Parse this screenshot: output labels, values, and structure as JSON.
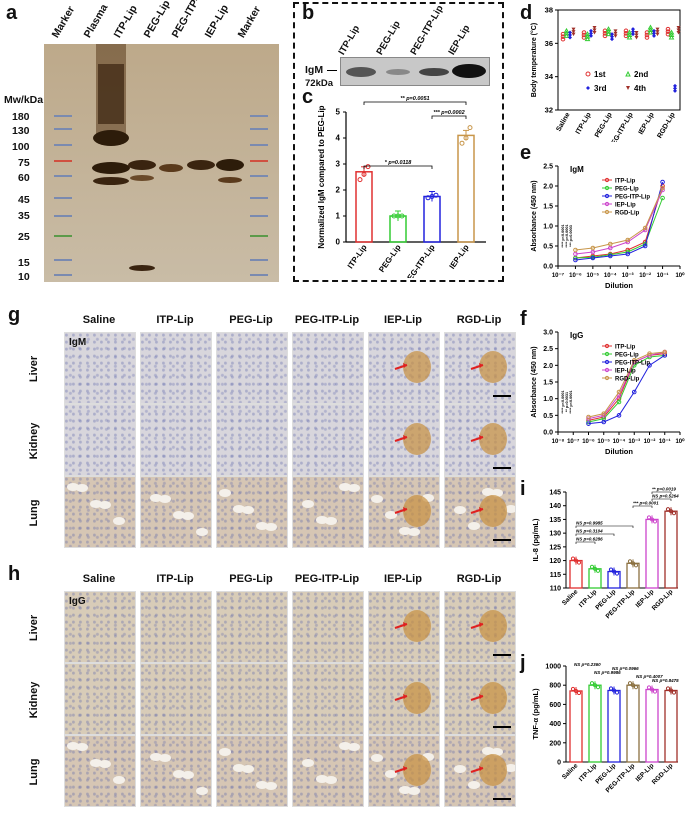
{
  "panels": {
    "a": "a",
    "b": "b",
    "c": "c",
    "d": "d",
    "e": "e",
    "f": "f",
    "g": "g",
    "h": "h",
    "i": "i",
    "j": "j"
  },
  "panel_a": {
    "lanes": [
      "Marker",
      "Plasma",
      "ITP-Lip",
      "PEG-Lip",
      "PEG-ITP-Lip",
      "IEP-Lip",
      "Marker"
    ],
    "mw_title": "Mw/kDa",
    "mw_ticks": [
      "180",
      "130",
      "100",
      "75",
      "60",
      "45",
      "35",
      "25",
      "15",
      "10"
    ]
  },
  "panel_b": {
    "lanes": [
      "ITP-Lip",
      "PEG-Lip",
      "PEG-ITP-Lip",
      "IEP-Lip"
    ],
    "band_label": "IgM",
    "size_label": "72kDa"
  },
  "panel_c": {
    "ylabel": "Normalized IgM compared to PEG-Lip",
    "categories": [
      "ITP-Lip",
      "PEG-Lip",
      "PEG-ITP-Lip",
      "IEP-Lip"
    ],
    "colors": [
      "#e03030",
      "#33cc33",
      "#2222dd",
      "#c8964a"
    ],
    "yticks": [
      "0",
      "1",
      "2",
      "3",
      "4",
      "5"
    ],
    "sig": [
      "** p=0.0051",
      "*** p=0.0002",
      "* p=0.0118"
    ]
  },
  "panel_d": {
    "ylabel": "Body temperature (°C)",
    "yticks": [
      "32",
      "34",
      "36",
      "38"
    ],
    "categories": [
      "Saline",
      "ITP-Lip",
      "PEG-Lip",
      "PEG-ITP-Lip",
      "IEP-Lip",
      "RGD-Lip"
    ],
    "legend": [
      "1st",
      "2nd",
      "3rd",
      "4th"
    ]
  },
  "panel_e": {
    "title": "IgM",
    "ylabel": "Absorbance (450 nm)",
    "xlabel": "Dilution",
    "yticks": [
      "0.0",
      "0.5",
      "1.0",
      "1.5",
      "2.0",
      "2.5"
    ],
    "xticks": [
      "10⁻⁷",
      "10⁻⁶",
      "10⁻⁵",
      "10⁻⁴",
      "10⁻³",
      "10⁻²",
      "10⁻¹",
      "10⁰"
    ],
    "legend": [
      "ITP-Lip",
      "PEG-Lip",
      "PEG-ITP-Lip",
      "IEP-Lip",
      "RGD-Lip"
    ],
    "sig": [
      "**** p<0.0001",
      "**** p<0.0001",
      "*** p=0.0003"
    ]
  },
  "panel_f": {
    "title": "IgG",
    "ylabel": "Absorbance (450 nm)",
    "xlabel": "Dilution",
    "yticks": [
      "0.0",
      "0.5",
      "1.0",
      "1.5",
      "2.0",
      "2.5",
      "3.0"
    ],
    "xticks": [
      "10⁻⁸",
      "10⁻⁷",
      "10⁻⁶",
      "10⁻⁵",
      "10⁻⁴",
      "10⁻³",
      "10⁻²",
      "10⁻¹",
      "10⁰"
    ],
    "legend": [
      "ITP-Lip",
      "PEG-Lip",
      "PEG-ITP-Lip",
      "IEP-Lip",
      "RGD-Lip"
    ],
    "sig": [
      "**** p<0.0001",
      "** p=0.0031",
      "**** p<0.0001"
    ]
  },
  "panel_g": {
    "cols": [
      "Saline",
      "ITP-Lip",
      "PEG-Lip",
      "PEG-ITP-Lip",
      "IEP-Lip",
      "RGD-Lip"
    ],
    "rows": [
      "Liver",
      "Kidney",
      "Lung"
    ],
    "stain": "IgM"
  },
  "panel_h": {
    "cols": [
      "Saline",
      "ITP-Lip",
      "PEG-Lip",
      "PEG-ITP-Lip",
      "IEP-Lip",
      "RGD-Lip"
    ],
    "rows": [
      "Liver",
      "Kidney",
      "Lung"
    ],
    "stain": "IgG"
  },
  "panel_i": {
    "ylabel": "IL-8 (pg/mL)",
    "yticks": [
      "110",
      "115",
      "120",
      "125",
      "130",
      "135",
      "140",
      "145"
    ],
    "categories": [
      "Saline",
      "ITP-Lip",
      "PEG-Lip",
      "PEG-ITP-Lip",
      "IEP-Lip",
      "RGD-Lip"
    ],
    "sig": [
      "** p=0.0019",
      "*** p=0.0001",
      "NS p=0.5264",
      "NS p=0.9985",
      "NS p=0.3104",
      "NS p=0.6286"
    ]
  },
  "panel_j": {
    "ylabel": "TNF-α (pg/mL)",
    "yticks": [
      "0",
      "200",
      "400",
      "600",
      "800",
      "1000"
    ],
    "categories": [
      "Saline",
      "ITP-Lip",
      "PEG-Lip",
      "PEG-ITP-Lip",
      "IEP-Lip",
      "RGD-Lip"
    ],
    "sig": [
      "NS p=0.2360",
      "NS p=0.9986",
      "NS p=0.0966",
      "NS p=0.4007",
      "NS p=0.8475"
    ]
  },
  "chart_data": [
    {
      "type": "bar",
      "id": "c",
      "categories": [
        "ITP-Lip",
        "PEG-Lip",
        "PEG-ITP-Lip",
        "IEP-Lip"
      ],
      "values": [
        2.7,
        1.0,
        1.75,
        4.1
      ],
      "points": [
        [
          2.4,
          2.6,
          2.9
        ],
        [
          1.0,
          1.0,
          1.0
        ],
        [
          1.7,
          1.75,
          1.8
        ],
        [
          3.8,
          4.0,
          4.4
        ]
      ],
      "ylim": [
        0,
        5
      ]
    },
    {
      "type": "scatter",
      "id": "d",
      "categories": [
        "Saline",
        "ITP-Lip",
        "PEG-Lip",
        "PEG-ITP-Lip",
        "IEP-Lip",
        "RGD-Lip"
      ],
      "ylim": [
        32,
        38
      ],
      "series": [
        {
          "name": "1st",
          "values": [
            36.4,
            36.5,
            36.6,
            36.6,
            36.5,
            36.7
          ]
        },
        {
          "name": "2nd",
          "values": [
            36.6,
            36.4,
            36.7,
            36.5,
            36.8,
            36.5
          ]
        },
        {
          "name": "3rd",
          "values": [
            36.5,
            36.6,
            36.4,
            36.7,
            36.6,
            33.3
          ]
        },
        {
          "name": "4th",
          "values": [
            36.7,
            36.8,
            36.6,
            36.5,
            36.7,
            36.8
          ]
        }
      ]
    },
    {
      "type": "line",
      "id": "e",
      "x_log": [
        -6,
        -5,
        -4,
        -3,
        -2,
        -1
      ],
      "ylim": [
        0,
        2.5
      ],
      "series": [
        {
          "name": "ITP-Lip",
          "values": [
            0.2,
            0.25,
            0.3,
            0.4,
            0.6,
            2.0
          ]
        },
        {
          "name": "PEG-Lip",
          "values": [
            0.2,
            0.22,
            0.28,
            0.35,
            0.55,
            1.7
          ]
        },
        {
          "name": "PEG-ITP-Lip",
          "values": [
            0.15,
            0.2,
            0.25,
            0.3,
            0.5,
            2.1
          ]
        },
        {
          "name": "IEP-Lip",
          "values": [
            0.3,
            0.35,
            0.45,
            0.6,
            0.9,
            1.9
          ]
        },
        {
          "name": "RGD-Lip",
          "values": [
            0.4,
            0.45,
            0.55,
            0.65,
            0.95,
            1.95
          ]
        }
      ]
    },
    {
      "type": "line",
      "id": "f",
      "x_log": [
        -6,
        -5,
        -4,
        -3,
        -2,
        -1
      ],
      "ylim": [
        0,
        3
      ],
      "series": [
        {
          "name": "ITP-Lip",
          "values": [
            0.35,
            0.45,
            1.0,
            2.1,
            2.3,
            2.35
          ]
        },
        {
          "name": "PEG-Lip",
          "values": [
            0.3,
            0.4,
            0.9,
            2.0,
            2.25,
            2.3
          ]
        },
        {
          "name": "PEG-ITP-Lip",
          "values": [
            0.25,
            0.3,
            0.5,
            1.2,
            2.0,
            2.3
          ]
        },
        {
          "name": "IEP-Lip",
          "values": [
            0.4,
            0.5,
            1.1,
            2.1,
            2.3,
            2.4
          ]
        },
        {
          "name": "RGD-Lip",
          "values": [
            0.45,
            0.55,
            1.2,
            2.15,
            2.35,
            2.4
          ]
        }
      ]
    },
    {
      "type": "bar",
      "id": "i",
      "categories": [
        "Saline",
        "ITP-Lip",
        "PEG-Lip",
        "PEG-ITP-Lip",
        "IEP-Lip",
        "RGD-Lip"
      ],
      "values": [
        120,
        117,
        116,
        119,
        135,
        138
      ],
      "ylim": [
        110,
        145
      ]
    },
    {
      "type": "bar",
      "id": "j",
      "categories": [
        "Saline",
        "ITP-Lip",
        "PEG-Lip",
        "PEG-ITP-Lip",
        "IEP-Lip",
        "RGD-Lip"
      ],
      "values": [
        740,
        800,
        745,
        800,
        755,
        745
      ],
      "ylim": [
        0,
        1000
      ]
    }
  ],
  "colors": {
    "c1": "#e03030",
    "c2": "#33cc33",
    "c3": "#2222dd",
    "c4": "#cc44cc",
    "c5": "#c8964a",
    "saline": "#e03030",
    "itp": "#33cc33",
    "peg": "#2222dd",
    "pegitp": "#8b7040",
    "iep": "#cc44cc",
    "rgd": "#a0302a"
  }
}
